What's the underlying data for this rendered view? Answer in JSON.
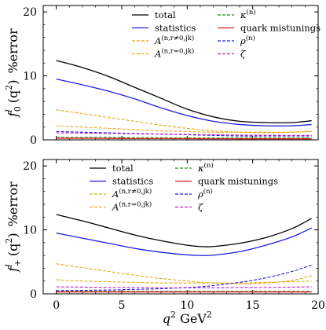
{
  "chart_data": [
    {
      "type": "line",
      "ylabel": "f_0^l (q^2) %error",
      "ylabel_parts": {
        "f": "f",
        "sup": "l",
        "sub": "0",
        "arg": "(q",
        "arg_sup": "2",
        "arg_close": ")",
        "unit": "%error"
      },
      "ylim": [
        0,
        21
      ],
      "xlim": [
        -1,
        20
      ],
      "yticks": [
        "0",
        "10",
        "20"
      ],
      "show_xtick_labels": false,
      "legend_placement": "top-right",
      "x": [
        0,
        2,
        4,
        6,
        8,
        10,
        12,
        14,
        16,
        18,
        19.5
      ],
      "series": [
        {
          "name": "total",
          "color": "#000000",
          "dash": "solid",
          "values": [
            12.4,
            11.3,
            9.9,
            8.2,
            6.5,
            4.8,
            3.6,
            2.9,
            2.7,
            2.7,
            3.0
          ]
        },
        {
          "name": "statistics",
          "color": "#1f1fe0",
          "dash": "solid",
          "values": [
            9.5,
            8.6,
            7.6,
            6.4,
            5.0,
            3.8,
            2.9,
            2.4,
            2.2,
            2.2,
            2.4
          ]
        },
        {
          "name": "A^{(n,r≠0,jk)}",
          "color": "#e6a817",
          "dash": "dashed",
          "values": [
            4.7,
            4.1,
            3.5,
            2.9,
            2.3,
            1.8,
            1.4,
            1.2,
            1.1,
            1.2,
            1.3
          ]
        },
        {
          "name": "A^{(n,r=0,jk)}",
          "color": "#e6a817",
          "dash": "dashed",
          "values": [
            2.2,
            2.0,
            1.8,
            1.6,
            1.4,
            1.3,
            1.2,
            1.2,
            1.2,
            1.2,
            1.3
          ]
        },
        {
          "name": "κ^{(n)}",
          "color": "#1a8c1a",
          "dash": "dashed",
          "values": [
            0.4,
            0.4,
            0.4,
            0.35,
            0.35,
            0.3,
            0.3,
            0.3,
            0.3,
            0.3,
            0.3
          ]
        },
        {
          "name": "quark mistunings",
          "color": "#e02020",
          "dash": "solid",
          "values": [
            0.25,
            0.25,
            0.22,
            0.2,
            0.2,
            0.18,
            0.17,
            0.16,
            0.16,
            0.16,
            0.16
          ]
        },
        {
          "name": "ρ^{(n)}",
          "color": "#1f1fe0",
          "dash": "dashed",
          "values": [
            1.3,
            1.2,
            1.1,
            1.0,
            0.9,
            0.8,
            0.7,
            0.6,
            0.6,
            0.6,
            0.6
          ]
        },
        {
          "name": "ζ",
          "color": "#c020c0",
          "dash": "dashed",
          "values": [
            1.1,
            1.05,
            1.0,
            0.95,
            0.9,
            0.85,
            0.8,
            0.75,
            0.72,
            0.7,
            0.7
          ]
        }
      ]
    },
    {
      "type": "line",
      "ylabel": "f_+^l (q^2) %error",
      "ylabel_parts": {
        "f": "f",
        "sup": "l",
        "sub": "+",
        "arg": "(q",
        "arg_sup": "2",
        "arg_close": ")",
        "unit": "%error"
      },
      "xlabel": "q^2 GeV^2",
      "xlabel_parts": {
        "q": "q",
        "q_sup": "2",
        "unit": "GeV",
        "unit_sup": "2"
      },
      "ylim": [
        0,
        21
      ],
      "xlim": [
        -1,
        20
      ],
      "yticks": [
        "0",
        "10",
        "20"
      ],
      "xticks": [
        "0",
        "5",
        "10",
        "15",
        "20"
      ],
      "legend_placement": "top-center",
      "x": [
        0,
        2,
        4,
        6,
        8,
        10,
        11,
        12,
        14,
        16,
        18,
        19.5
      ],
      "series": [
        {
          "name": "total",
          "color": "#000000",
          "dash": "solid",
          "values": [
            12.4,
            11.4,
            10.3,
            9.2,
            8.3,
            7.6,
            7.4,
            7.4,
            7.9,
            8.8,
            10.2,
            11.8
          ]
        },
        {
          "name": "statistics",
          "color": "#1f1fe0",
          "dash": "solid",
          "values": [
            9.5,
            8.7,
            7.9,
            7.1,
            6.5,
            6.1,
            6.0,
            6.05,
            6.6,
            7.6,
            8.9,
            10.3
          ]
        },
        {
          "name": "A^{(n,r≠0,jk)}",
          "color": "#e6a817",
          "dash": "dashed",
          "values": [
            4.7,
            4.1,
            3.5,
            2.9,
            2.4,
            2.0,
            1.8,
            1.7,
            1.6,
            1.7,
            2.1,
            2.8
          ]
        },
        {
          "name": "A^{(n,r=0,jk)}",
          "color": "#e6a817",
          "dash": "dashed",
          "values": [
            2.2,
            2.0,
            1.9,
            1.8,
            1.7,
            1.7,
            1.7,
            1.7,
            1.7,
            1.8,
            1.9,
            2.0
          ]
        },
        {
          "name": "κ^{(n)}",
          "color": "#1a8c1a",
          "dash": "dashed",
          "values": [
            0.4,
            0.4,
            0.4,
            0.4,
            0.4,
            0.4,
            0.4,
            0.4,
            0.4,
            0.4,
            0.4,
            0.4
          ]
        },
        {
          "name": "quark mistunings",
          "color": "#e02020",
          "dash": "solid",
          "values": [
            0.3,
            0.3,
            0.3,
            0.3,
            0.3,
            0.3,
            0.3,
            0.3,
            0.3,
            0.3,
            0.3,
            0.3
          ]
        },
        {
          "name": "ρ^{(n)}",
          "color": "#1f1fe0",
          "dash": "dashed",
          "values": [
            0.5,
            0.55,
            0.6,
            0.7,
            0.8,
            1.0,
            1.1,
            1.3,
            1.8,
            2.5,
            3.5,
            4.5
          ]
        },
        {
          "name": "ζ",
          "color": "#c020c0",
          "dash": "dashed",
          "values": [
            1.1,
            1.05,
            1.0,
            1.0,
            0.95,
            0.95,
            0.95,
            0.95,
            1.0,
            1.0,
            1.05,
            1.1
          ]
        }
      ]
    }
  ]
}
